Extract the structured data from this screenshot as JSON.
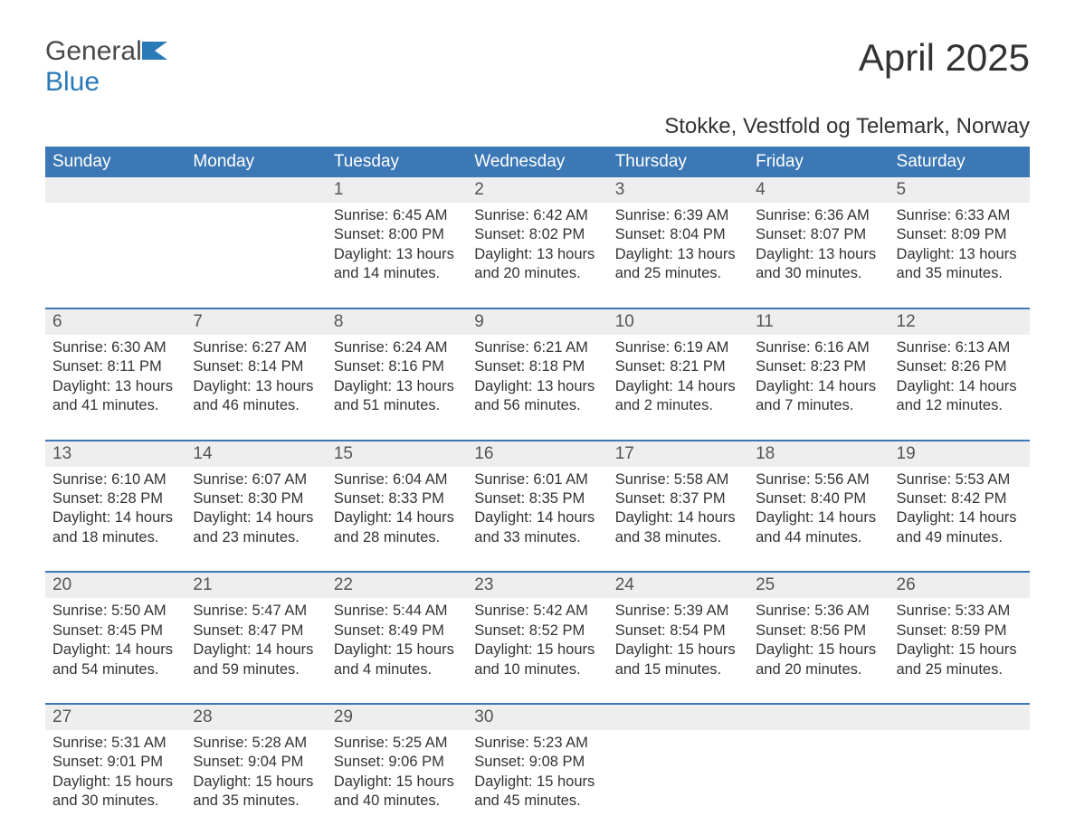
{
  "logo": {
    "general": "General",
    "blue": "Blue"
  },
  "title": "April 2025",
  "subtitle": "Stokke, Vestfold og Telemark, Norway",
  "colors": {
    "header_bg": "#3b78b5",
    "header_text": "#ffffff",
    "daynum_bg": "#eeeeee",
    "logo_accent": "#2a7ab8",
    "text": "#333333"
  },
  "weekdays": [
    "Sunday",
    "Monday",
    "Tuesday",
    "Wednesday",
    "Thursday",
    "Friday",
    "Saturday"
  ],
  "weeks": [
    [
      null,
      null,
      {
        "day": "1",
        "sunrise": "Sunrise: 6:45 AM",
        "sunset": "Sunset: 8:00 PM",
        "dl1": "Daylight: 13 hours",
        "dl2": "and 14 minutes."
      },
      {
        "day": "2",
        "sunrise": "Sunrise: 6:42 AM",
        "sunset": "Sunset: 8:02 PM",
        "dl1": "Daylight: 13 hours",
        "dl2": "and 20 minutes."
      },
      {
        "day": "3",
        "sunrise": "Sunrise: 6:39 AM",
        "sunset": "Sunset: 8:04 PM",
        "dl1": "Daylight: 13 hours",
        "dl2": "and 25 minutes."
      },
      {
        "day": "4",
        "sunrise": "Sunrise: 6:36 AM",
        "sunset": "Sunset: 8:07 PM",
        "dl1": "Daylight: 13 hours",
        "dl2": "and 30 minutes."
      },
      {
        "day": "5",
        "sunrise": "Sunrise: 6:33 AM",
        "sunset": "Sunset: 8:09 PM",
        "dl1": "Daylight: 13 hours",
        "dl2": "and 35 minutes."
      }
    ],
    [
      {
        "day": "6",
        "sunrise": "Sunrise: 6:30 AM",
        "sunset": "Sunset: 8:11 PM",
        "dl1": "Daylight: 13 hours",
        "dl2": "and 41 minutes."
      },
      {
        "day": "7",
        "sunrise": "Sunrise: 6:27 AM",
        "sunset": "Sunset: 8:14 PM",
        "dl1": "Daylight: 13 hours",
        "dl2": "and 46 minutes."
      },
      {
        "day": "8",
        "sunrise": "Sunrise: 6:24 AM",
        "sunset": "Sunset: 8:16 PM",
        "dl1": "Daylight: 13 hours",
        "dl2": "and 51 minutes."
      },
      {
        "day": "9",
        "sunrise": "Sunrise: 6:21 AM",
        "sunset": "Sunset: 8:18 PM",
        "dl1": "Daylight: 13 hours",
        "dl2": "and 56 minutes."
      },
      {
        "day": "10",
        "sunrise": "Sunrise: 6:19 AM",
        "sunset": "Sunset: 8:21 PM",
        "dl1": "Daylight: 14 hours",
        "dl2": "and 2 minutes."
      },
      {
        "day": "11",
        "sunrise": "Sunrise: 6:16 AM",
        "sunset": "Sunset: 8:23 PM",
        "dl1": "Daylight: 14 hours",
        "dl2": "and 7 minutes."
      },
      {
        "day": "12",
        "sunrise": "Sunrise: 6:13 AM",
        "sunset": "Sunset: 8:26 PM",
        "dl1": "Daylight: 14 hours",
        "dl2": "and 12 minutes."
      }
    ],
    [
      {
        "day": "13",
        "sunrise": "Sunrise: 6:10 AM",
        "sunset": "Sunset: 8:28 PM",
        "dl1": "Daylight: 14 hours",
        "dl2": "and 18 minutes."
      },
      {
        "day": "14",
        "sunrise": "Sunrise: 6:07 AM",
        "sunset": "Sunset: 8:30 PM",
        "dl1": "Daylight: 14 hours",
        "dl2": "and 23 minutes."
      },
      {
        "day": "15",
        "sunrise": "Sunrise: 6:04 AM",
        "sunset": "Sunset: 8:33 PM",
        "dl1": "Daylight: 14 hours",
        "dl2": "and 28 minutes."
      },
      {
        "day": "16",
        "sunrise": "Sunrise: 6:01 AM",
        "sunset": "Sunset: 8:35 PM",
        "dl1": "Daylight: 14 hours",
        "dl2": "and 33 minutes."
      },
      {
        "day": "17",
        "sunrise": "Sunrise: 5:58 AM",
        "sunset": "Sunset: 8:37 PM",
        "dl1": "Daylight: 14 hours",
        "dl2": "and 38 minutes."
      },
      {
        "day": "18",
        "sunrise": "Sunrise: 5:56 AM",
        "sunset": "Sunset: 8:40 PM",
        "dl1": "Daylight: 14 hours",
        "dl2": "and 44 minutes."
      },
      {
        "day": "19",
        "sunrise": "Sunrise: 5:53 AM",
        "sunset": "Sunset: 8:42 PM",
        "dl1": "Daylight: 14 hours",
        "dl2": "and 49 minutes."
      }
    ],
    [
      {
        "day": "20",
        "sunrise": "Sunrise: 5:50 AM",
        "sunset": "Sunset: 8:45 PM",
        "dl1": "Daylight: 14 hours",
        "dl2": "and 54 minutes."
      },
      {
        "day": "21",
        "sunrise": "Sunrise: 5:47 AM",
        "sunset": "Sunset: 8:47 PM",
        "dl1": "Daylight: 14 hours",
        "dl2": "and 59 minutes."
      },
      {
        "day": "22",
        "sunrise": "Sunrise: 5:44 AM",
        "sunset": "Sunset: 8:49 PM",
        "dl1": "Daylight: 15 hours",
        "dl2": "and 4 minutes."
      },
      {
        "day": "23",
        "sunrise": "Sunrise: 5:42 AM",
        "sunset": "Sunset: 8:52 PM",
        "dl1": "Daylight: 15 hours",
        "dl2": "and 10 minutes."
      },
      {
        "day": "24",
        "sunrise": "Sunrise: 5:39 AM",
        "sunset": "Sunset: 8:54 PM",
        "dl1": "Daylight: 15 hours",
        "dl2": "and 15 minutes."
      },
      {
        "day": "25",
        "sunrise": "Sunrise: 5:36 AM",
        "sunset": "Sunset: 8:56 PM",
        "dl1": "Daylight: 15 hours",
        "dl2": "and 20 minutes."
      },
      {
        "day": "26",
        "sunrise": "Sunrise: 5:33 AM",
        "sunset": "Sunset: 8:59 PM",
        "dl1": "Daylight: 15 hours",
        "dl2": "and 25 minutes."
      }
    ],
    [
      {
        "day": "27",
        "sunrise": "Sunrise: 5:31 AM",
        "sunset": "Sunset: 9:01 PM",
        "dl1": "Daylight: 15 hours",
        "dl2": "and 30 minutes."
      },
      {
        "day": "28",
        "sunrise": "Sunrise: 5:28 AM",
        "sunset": "Sunset: 9:04 PM",
        "dl1": "Daylight: 15 hours",
        "dl2": "and 35 minutes."
      },
      {
        "day": "29",
        "sunrise": "Sunrise: 5:25 AM",
        "sunset": "Sunset: 9:06 PM",
        "dl1": "Daylight: 15 hours",
        "dl2": "and 40 minutes."
      },
      {
        "day": "30",
        "sunrise": "Sunrise: 5:23 AM",
        "sunset": "Sunset: 9:08 PM",
        "dl1": "Daylight: 15 hours",
        "dl2": "and 45 minutes."
      },
      null,
      null,
      null
    ]
  ]
}
